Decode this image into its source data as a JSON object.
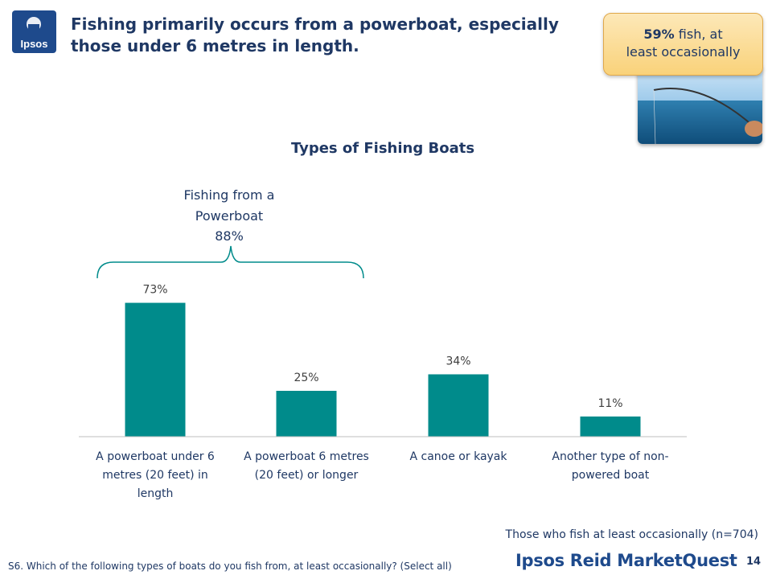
{
  "header": {
    "logo_text": "Ipsos",
    "headline": "Fishing primarily occurs from a powerboat, especially those under 6 metres in length."
  },
  "callout": {
    "percent": "59%",
    "text_line1": " fish, at",
    "text_line2": "least occasionally"
  },
  "bracket_annotation": {
    "line1": "Fishing from a",
    "line2": "Powerboat",
    "line3": "88%"
  },
  "chart_data": {
    "type": "bar",
    "title": "Types of Fishing Boats",
    "categories": [
      [
        "A powerboat under 6",
        "metres (20 feet) in",
        "length"
      ],
      [
        "A powerboat 6 metres",
        "(20 feet) or longer"
      ],
      [
        "A canoe or kayak"
      ],
      [
        "Another type of non-",
        "powered boat"
      ]
    ],
    "values": [
      73,
      25,
      34,
      11
    ],
    "data_labels": [
      "73%",
      "25%",
      "34%",
      "11%"
    ],
    "ylim": [
      0,
      100
    ],
    "colors": {
      "bar": "#008b8b"
    }
  },
  "footer": {
    "base_note": "Those who fish at least occasionally (n=704)",
    "question": "S6. Which of the following types of boats do you fish from, at least occasionally? (Select all)",
    "brand": "Ipsos Reid MarketQuest",
    "page_number": "14"
  }
}
